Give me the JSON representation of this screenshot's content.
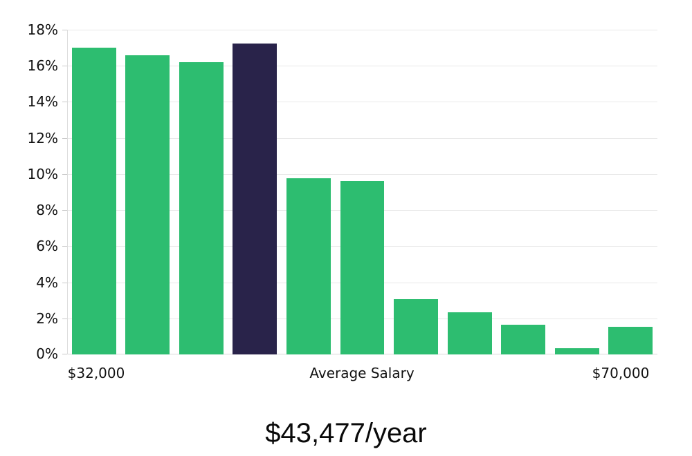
{
  "chart_data": {
    "type": "bar",
    "title": "$43,477/year",
    "x_axis_labels": {
      "left": "$32,000",
      "center": "Average Salary",
      "right": "$70,000"
    },
    "y_ticks": [
      "18%",
      "16%",
      "14%",
      "12%",
      "10%",
      "8%",
      "6%",
      "4%",
      "2%",
      "0%"
    ],
    "ylim": [
      0,
      18
    ],
    "y_tick_step": 2,
    "unit": "%",
    "grid": true,
    "legend": false,
    "series": [
      {
        "name": "salary-distribution",
        "values": [
          17.0,
          16.6,
          16.2,
          17.25,
          9.75,
          9.6,
          3.05,
          2.35,
          1.65,
          0.35,
          1.55
        ]
      }
    ],
    "highlighted_bar_index": 3,
    "colors": {
      "bar": "#2dbd70",
      "highlighted_bar": "#29234a",
      "gridline": "#e8e8e8",
      "baseline": "#d9d9d9",
      "axis_line": "#dcdcdc",
      "tick": "#c9c9c9",
      "text": "#111111",
      "title_text": "#0a0a0a",
      "background": "#ffffff"
    }
  }
}
